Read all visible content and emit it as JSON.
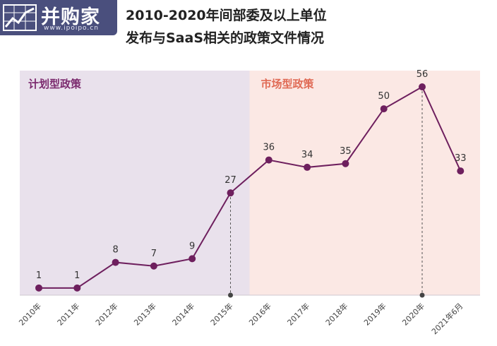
{
  "logo": {
    "text": "并购家",
    "url": "www.ipoipo.cn"
  },
  "title": {
    "line1": "2010-2020年间部委及以上单位",
    "line2": "发布与SaaS相关的政策文件情况"
  },
  "colors": {
    "line": "#6e1f5e",
    "planned_region": "#e9e1ec",
    "market_region": "#fbe8e4",
    "planned_label": "#7b2a6e",
    "market_label": "#e06a55",
    "logo_bg": "#4a4f7d"
  },
  "chart_data": {
    "type": "line",
    "categories": [
      "2010年",
      "2011年",
      "2012年",
      "2013年",
      "2014年",
      "2015年",
      "2016年",
      "2017年",
      "2018年",
      "2019年",
      "2020年",
      "2021年6月"
    ],
    "values": [
      1,
      1,
      8,
      7,
      9,
      27,
      36,
      34,
      35,
      50,
      56,
      33
    ],
    "ylim": [
      0,
      56
    ],
    "regions": [
      {
        "label": "计划型政策",
        "from": "2010年",
        "to": "2015年"
      },
      {
        "label": "市场型政策",
        "from": "2015年",
        "to": "2021年6月"
      }
    ],
    "dashed_markers": [
      "2015年",
      "2020年"
    ],
    "grid": false,
    "legend": "none"
  }
}
